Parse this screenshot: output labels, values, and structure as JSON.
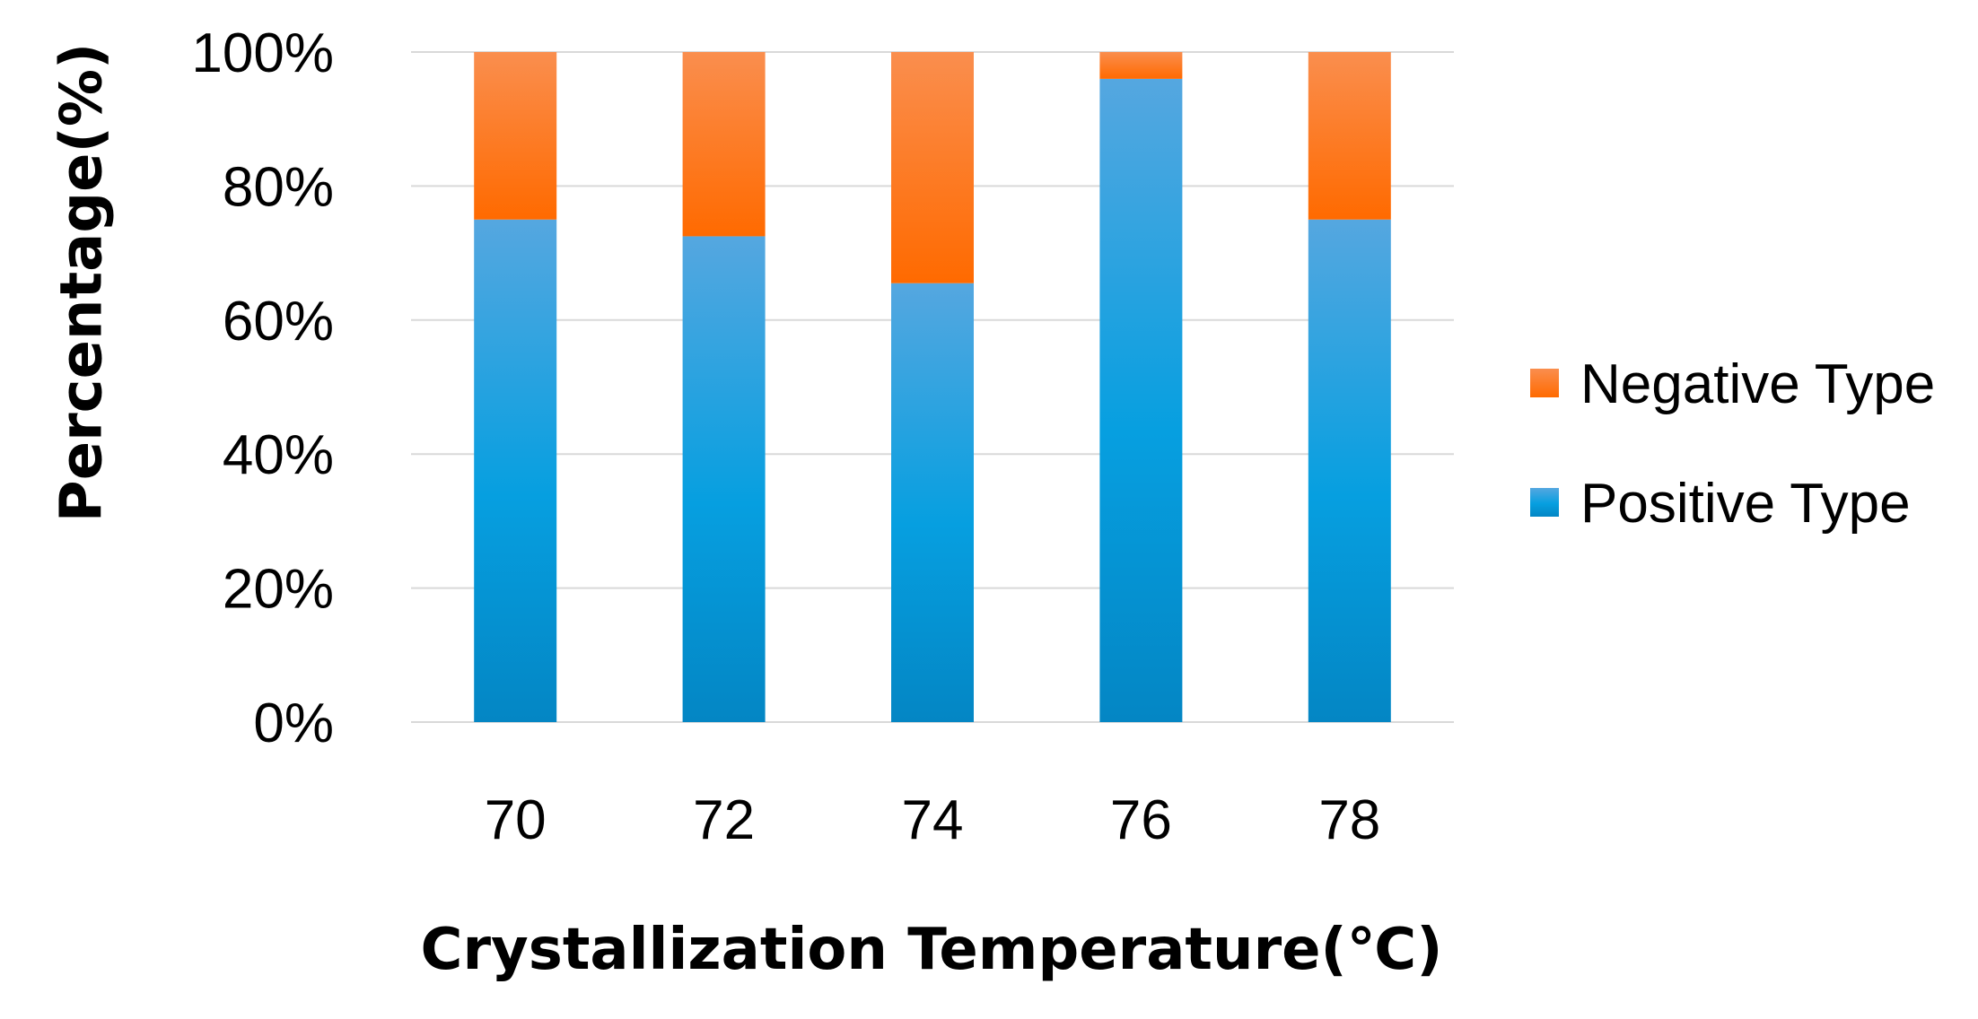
{
  "chart_data": {
    "type": "bar",
    "stacked": true,
    "title": "",
    "xlabel": "Crystallization Temperature(℃)",
    "ylabel": "Percentage(%)",
    "categories": [
      "70",
      "72",
      "74",
      "76",
      "78"
    ],
    "ylim": [
      0,
      100
    ],
    "yticks": [
      0,
      20,
      40,
      60,
      80,
      100
    ],
    "ytick_labels": [
      "0%",
      "20%",
      "40%",
      "60%",
      "80%",
      "100%"
    ],
    "grid": true,
    "legend_position": "right",
    "series": [
      {
        "name": "Positive Type",
        "color": "#0a9ad8",
        "values": [
          75,
          72.5,
          65.5,
          96,
          75
        ]
      },
      {
        "name": "Negative Type",
        "color": "#ff7a1a",
        "values": [
          25,
          27.5,
          34.5,
          4,
          25
        ]
      }
    ],
    "legend_order": [
      "Negative Type",
      "Positive Type"
    ]
  }
}
